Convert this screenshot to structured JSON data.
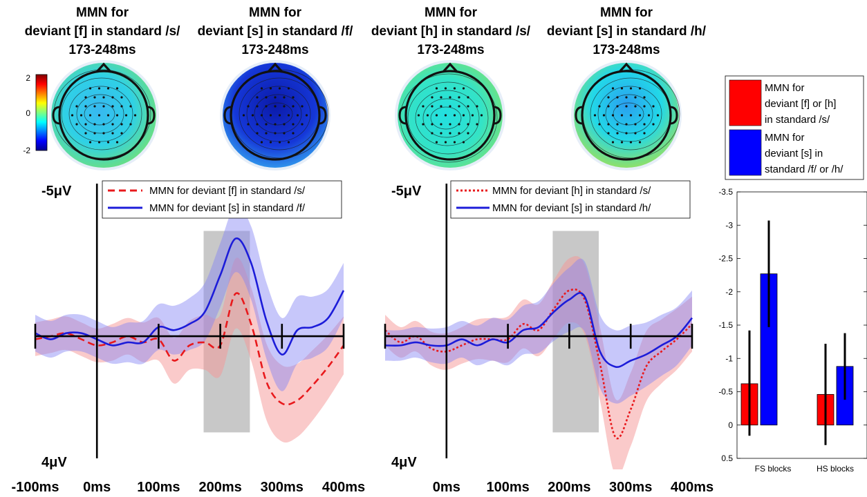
{
  "chart_data": [
    {
      "type": "heatmap",
      "kind": "scalp-topography",
      "colorbar": {
        "min": -2,
        "max": 2,
        "ticks": [
          2,
          0,
          -2
        ],
        "colormap": "jet"
      },
      "maps": [
        {
          "title_lines": [
            "MMN for",
            "deviant [f] in standard /s/",
            "173-248ms"
          ],
          "mean_level": -0.6
        },
        {
          "title_lines": [
            "MMN for",
            "deviant [s] in standard /f/",
            "173-248ms"
          ],
          "mean_level": -2.0
        },
        {
          "title_lines": [
            "MMN for",
            "deviant [h] in standard /s/",
            "173-248ms"
          ],
          "mean_level": -0.45
        },
        {
          "title_lines": [
            "MMN for",
            "deviant [s] in standard /h/",
            "173-248ms"
          ],
          "mean_level": -0.9
        }
      ]
    },
    {
      "type": "line",
      "axis_top_label": "-5μV",
      "axis_bottom_label": "4μV",
      "y_inverted": true,
      "ylim": [
        -5,
        4
      ],
      "xlim": [
        -100,
        400
      ],
      "x_tick_labels": [
        "-100ms",
        "0ms",
        "100ms",
        "200ms",
        "300ms",
        "400ms"
      ],
      "shaded_window": [
        173,
        248
      ],
      "legend_position": "top",
      "x": [
        -100,
        -75,
        -50,
        -25,
        0,
        25,
        50,
        75,
        100,
        125,
        150,
        175,
        200,
        225,
        250,
        275,
        300,
        325,
        350,
        375,
        400
      ],
      "series": [
        {
          "name": "MMN for deviant [f] in standard /s/",
          "color": "#e8191c",
          "style": "dashed",
          "values": [
            0.1,
            0,
            -0.1,
            0.1,
            0.3,
            0.2,
            0,
            0.2,
            0.1,
            0.8,
            0.3,
            0.2,
            0.3,
            -1.4,
            -0.4,
            1.5,
            2.2,
            2.1,
            1.6,
            1.0,
            0.3
          ],
          "ci": [
            0.55,
            0.55,
            0.55,
            0.55,
            0.55,
            0.6,
            0.6,
            0.65,
            0.7,
            0.75,
            0.8,
            0.9,
            1.0,
            1.15,
            1.2,
            1.25,
            1.25,
            1.2,
            1.15,
            1.05,
            0.95
          ]
        },
        {
          "name": "MMN for deviant [s] in standard /f/",
          "color": "#1c1cd9",
          "style": "solid",
          "values": [
            -0.1,
            0.1,
            -0.1,
            -0.1,
            0.1,
            0.3,
            0.2,
            0.2,
            -0.3,
            -0.2,
            -0.4,
            -0.8,
            -2.0,
            -3.2,
            -2.4,
            -0.5,
            0.6,
            -0.2,
            -0.3,
            -0.6,
            -1.5
          ],
          "ci": [
            0.6,
            0.6,
            0.6,
            0.6,
            0.6,
            0.6,
            0.65,
            0.7,
            0.75,
            0.8,
            0.85,
            0.95,
            1.05,
            1.1,
            1.2,
            1.25,
            1.2,
            1.1,
            1.0,
            0.95,
            0.9
          ]
        }
      ]
    },
    {
      "type": "line",
      "axis_top_label": "-5μV",
      "axis_bottom_label": "4μV",
      "y_inverted": true,
      "ylim": [
        -5,
        4
      ],
      "xlim": [
        -100,
        400
      ],
      "x_tick_labels": [
        "0ms",
        "100ms",
        "200ms",
        "300ms",
        "400ms"
      ],
      "shaded_window": [
        173,
        248
      ],
      "legend_position": "top",
      "x": [
        -100,
        -75,
        -50,
        -25,
        0,
        25,
        50,
        75,
        100,
        125,
        150,
        175,
        200,
        225,
        250,
        275,
        300,
        325,
        350,
        375,
        400
      ],
      "series": [
        {
          "name": "MMN for deviant [h] in standard /s/",
          "color": "#e8191c",
          "style": "dotted",
          "values": [
            -0.2,
            0.2,
            0,
            0.4,
            0.5,
            0.3,
            0.1,
            0.1,
            0.1,
            -0.4,
            -0.2,
            -0.9,
            -1.5,
            -1.2,
            0.9,
            3.3,
            2.4,
            1.0,
            0.5,
            0.1,
            -0.4
          ],
          "ci": [
            0.5,
            0.5,
            0.5,
            0.55,
            0.6,
            0.6,
            0.65,
            0.7,
            0.75,
            0.8,
            0.85,
            0.95,
            1.05,
            1.15,
            1.2,
            1.25,
            1.2,
            1.15,
            1.05,
            1.0,
            0.9
          ]
        },
        {
          "name": "MMN for deviant [s] in standard /h/",
          "color": "#1c1cd9",
          "style": "solid",
          "values": [
            0.3,
            0.3,
            0.2,
            0.3,
            0.3,
            0.1,
            0.3,
            0.1,
            0.2,
            -0.2,
            -0.3,
            -0.8,
            -1.2,
            -1.3,
            0.5,
            1.0,
            0.8,
            0.6,
            0.3,
            0,
            -0.6
          ],
          "ci": [
            0.5,
            0.5,
            0.5,
            0.55,
            0.6,
            0.6,
            0.65,
            0.7,
            0.75,
            0.8,
            0.85,
            0.95,
            1.05,
            1.15,
            1.2,
            1.2,
            1.15,
            1.05,
            1.0,
            0.95,
            0.9
          ]
        }
      ]
    },
    {
      "type": "bar",
      "categories": [
        "FS blocks",
        "HS blocks"
      ],
      "ylim": [
        -3.5,
        0.5
      ],
      "y_inverted": true,
      "y_tick_labels": [
        "-3.5",
        "-3",
        "-2.5",
        "-2",
        "-1.5",
        "-1",
        "-0.5",
        "0",
        "0.5"
      ],
      "legend_position": "top-right",
      "legend_lines": [
        [
          "MMN for",
          "deviant [f] or [h]",
          "in standard /s/"
        ],
        [
          "MMN for",
          "deviant [s] in",
          "standard /f/ or /h/"
        ]
      ],
      "series": [
        {
          "name": "MMN for deviant [f] or [h] in standard /s/",
          "color": "#ff0000",
          "values": [
            -0.62,
            -0.46
          ],
          "err_low": [
            0.16,
            0.3
          ],
          "err_high": [
            -1.42,
            -1.22
          ]
        },
        {
          "name": "MMN for deviant [s] in standard /f/ or /h/",
          "color": "#0000ff",
          "values": [
            -2.27,
            -0.88
          ],
          "err_low": [
            -1.47,
            -0.38
          ],
          "err_high": [
            -3.07,
            -1.38
          ]
        }
      ]
    }
  ]
}
